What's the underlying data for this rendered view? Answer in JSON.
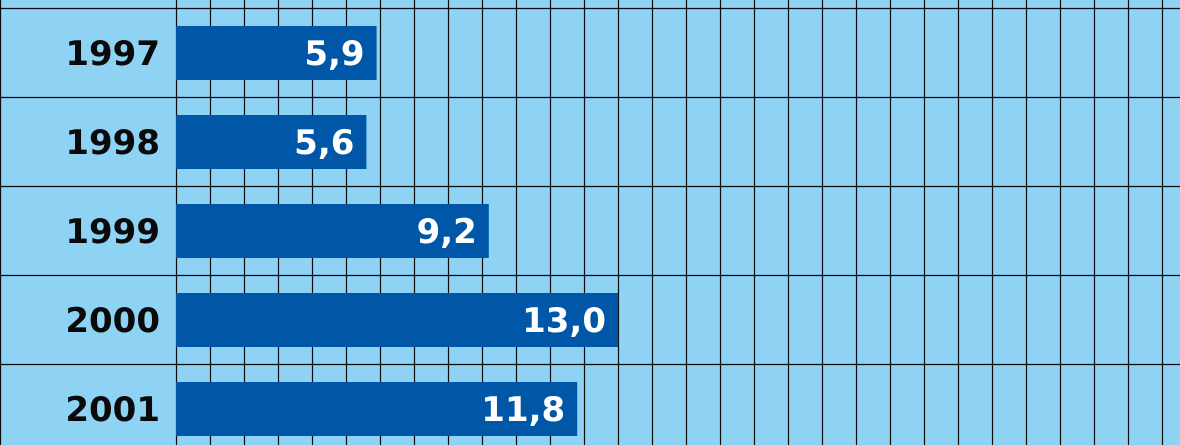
{
  "chart_data": {
    "type": "bar",
    "orientation": "horizontal",
    "categories": [
      "1997",
      "1998",
      "1999",
      "2000",
      "2001"
    ],
    "values": [
      5.9,
      5.6,
      9.2,
      13.0,
      11.8
    ],
    "value_labels": [
      "5,9",
      "5,6",
      "9,2",
      "13,0",
      "11,8"
    ],
    "title": "",
    "xlabel": "",
    "ylabel": "",
    "xlim": [
      0,
      29.6
    ],
    "grid": true,
    "colors": {
      "background": "#8fd3f4",
      "bar": "#0057a8",
      "grid": "#0a0a0a",
      "year_text": "#0a0a0a",
      "value_text": "#ffffff"
    }
  }
}
